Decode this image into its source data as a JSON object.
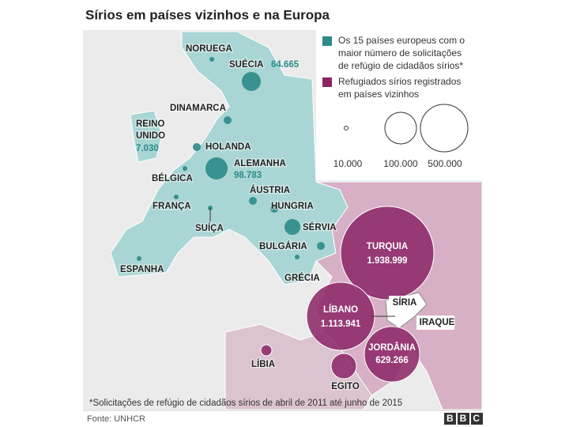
{
  "header": {
    "title": "Sírios em países vizinhos e na Europa"
  },
  "legend": {
    "items": [
      {
        "lines": [
          "Os 15 países europeus com o",
          "maior número de solicitações",
          "de refúgio de cidadãos sírios*"
        ]
      },
      {
        "lines": [
          "Refugiados sírios registrados",
          "em países vizinhos"
        ]
      }
    ],
    "sizes": [
      "10.000",
      "100.000",
      "500.000"
    ]
  },
  "europe": [
    {
      "label": "NORUEGA"
    },
    {
      "label": "SUÉCIA",
      "value": "64.665"
    },
    {
      "label": "DINAMARCA"
    },
    {
      "label_lines": [
        "REINO",
        "UNIDO"
      ],
      "value": "7.030"
    },
    {
      "label": "HOLANDA"
    },
    {
      "label": "ALEMANHA",
      "value": "98.783"
    },
    {
      "label": "BÉLGICA"
    },
    {
      "label": "ÁUSTRIA"
    },
    {
      "label": "FRANÇA"
    },
    {
      "label": "HUNGRIA"
    },
    {
      "label": "SUÍÇA"
    },
    {
      "label": "SÉRVIA"
    },
    {
      "label": "BULGÁRIA"
    },
    {
      "label": "ESPANHA"
    },
    {
      "label": "GRÉCIA"
    }
  ],
  "neighbors": [
    {
      "label": "TURQUIA",
      "value": "1.938.999"
    },
    {
      "label": "LÍBANO",
      "value": "1.113.941"
    },
    {
      "label": "JORDÂNIA",
      "value": "629.266"
    },
    {
      "label": "IRAQUE"
    },
    {
      "label": "LÍBIA"
    },
    {
      "label": "EGITO"
    }
  ],
  "origin": {
    "label": "SÍRIA"
  },
  "footnote": "*Solicitações de refúgio de cidadãos sírios de abril de 2011 até junho de 2015",
  "source": "Fonte: UNHCR",
  "logo": "BBC"
}
